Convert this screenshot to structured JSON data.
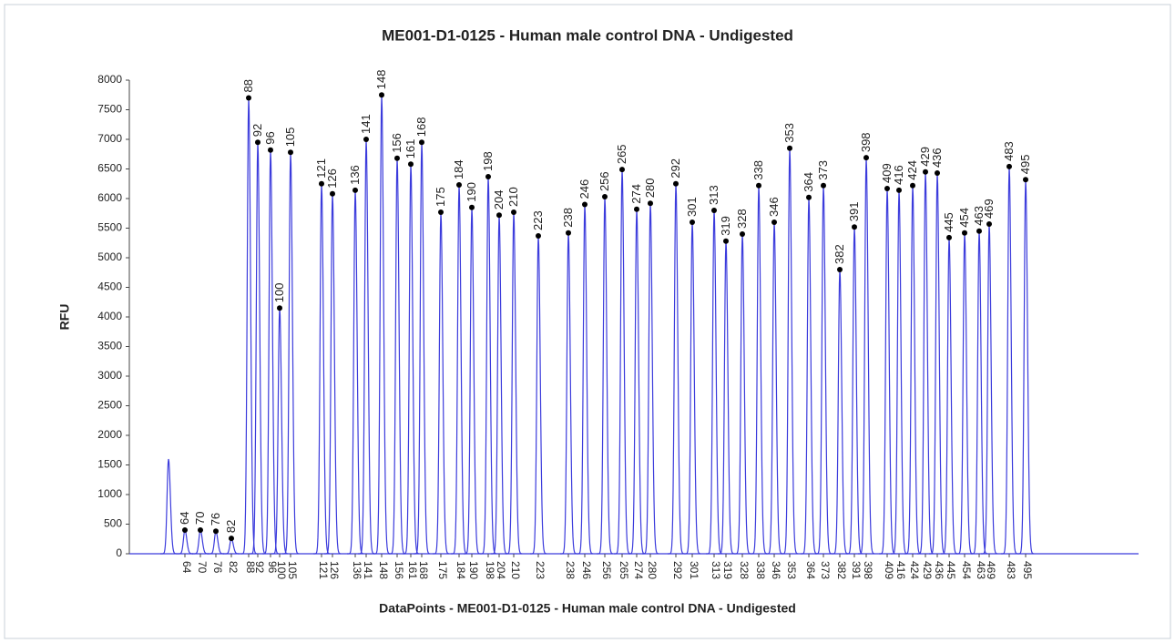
{
  "chart_data": {
    "type": "electropherogram",
    "title": "ME001-D1-0125 - Human male control DNA - Undigested",
    "y_label": "RFU",
    "x_label": "DataPoints - ME001-D1-0125 - Human male control DNA - Undigested",
    "color": "#3b3bdc",
    "ylim": [
      0,
      8000
    ],
    "yticks": [
      0,
      500,
      1000,
      1500,
      2000,
      2500,
      3000,
      3500,
      4000,
      4500,
      5000,
      5500,
      6000,
      6500,
      7000,
      7500,
      8000
    ],
    "xlim": [
      0,
      1108
    ],
    "categories": [
      null,
      "64",
      "70",
      "76",
      "82",
      "88",
      "92",
      "96",
      "100",
      "105",
      "121",
      "126",
      "136",
      "141",
      "148",
      "156",
      "161",
      "168",
      "175",
      "184",
      "190",
      "198",
      "204",
      "210",
      "223",
      "238",
      "246",
      "256",
      "265",
      "274",
      "280",
      "292",
      "301",
      "313",
      "319",
      "328",
      "338",
      "346",
      "353",
      "364",
      "373",
      "382",
      "391",
      "398",
      "409",
      "416",
      "424",
      "429",
      "436",
      "445",
      "454",
      "463",
      "469",
      "483",
      "495"
    ],
    "x": [
      43,
      61,
      78,
      95,
      112,
      131,
      141,
      155,
      165,
      177,
      211,
      223,
      248,
      260,
      277,
      294,
      309,
      321,
      342,
      362,
      376,
      394,
      406,
      422,
      449,
      482,
      500,
      522,
      541,
      557,
      572,
      600,
      618,
      642,
      655,
      673,
      691,
      708,
      725,
      746,
      762,
      780,
      796,
      809,
      832,
      845,
      860,
      874,
      887,
      900,
      917,
      933,
      944,
      966,
      984
    ],
    "values": [
      1600,
      400,
      400,
      380,
      260,
      7700,
      6950,
      6820,
      4150,
      6780,
      6250,
      6080,
      6140,
      7000,
      7750,
      6680,
      6580,
      6950,
      5770,
      6230,
      5850,
      6370,
      5720,
      5770,
      5370,
      5420,
      5900,
      6030,
      6490,
      5820,
      5920,
      6250,
      5600,
      5800,
      5280,
      5400,
      6220,
      5600,
      6850,
      6020,
      6220,
      4800,
      5520,
      6690,
      6170,
      6140,
      6220,
      6450,
      6430,
      5340,
      5420,
      5450,
      5570,
      6540,
      6320
    ]
  }
}
